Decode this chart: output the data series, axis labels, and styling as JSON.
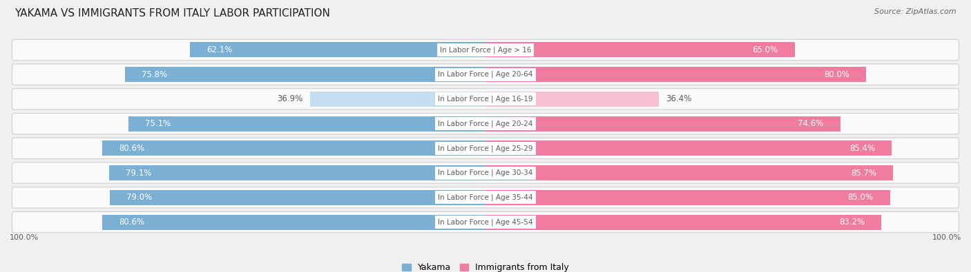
{
  "title": "YAKAMA VS IMMIGRANTS FROM ITALY LABOR PARTICIPATION",
  "source": "Source: ZipAtlas.com",
  "categories": [
    "In Labor Force | Age > 16",
    "In Labor Force | Age 20-64",
    "In Labor Force | Age 16-19",
    "In Labor Force | Age 20-24",
    "In Labor Force | Age 25-29",
    "In Labor Force | Age 30-34",
    "In Labor Force | Age 35-44",
    "In Labor Force | Age 45-54"
  ],
  "yakama_values": [
    62.1,
    75.8,
    36.9,
    75.1,
    80.6,
    79.1,
    79.0,
    80.6
  ],
  "italy_values": [
    65.0,
    80.0,
    36.4,
    74.6,
    85.4,
    85.7,
    85.0,
    83.2
  ],
  "yakama_color": "#7bafd4",
  "yakama_color_light": "#c5ddf0",
  "italy_color": "#f07ca0",
  "italy_color_light": "#f5c0d0",
  "label_color_dark": "#5a5a5a",
  "label_color_white": "#ffffff",
  "bg_color": "#f0f0f0",
  "row_bg_color": "#fafafa",
  "title_fontsize": 11,
  "source_fontsize": 8,
  "bar_label_fontsize": 8.5,
  "category_fontsize": 7.5,
  "legend_fontsize": 9,
  "axis_label_fontsize": 8,
  "max_value": 100.0,
  "bar_height": 0.62
}
